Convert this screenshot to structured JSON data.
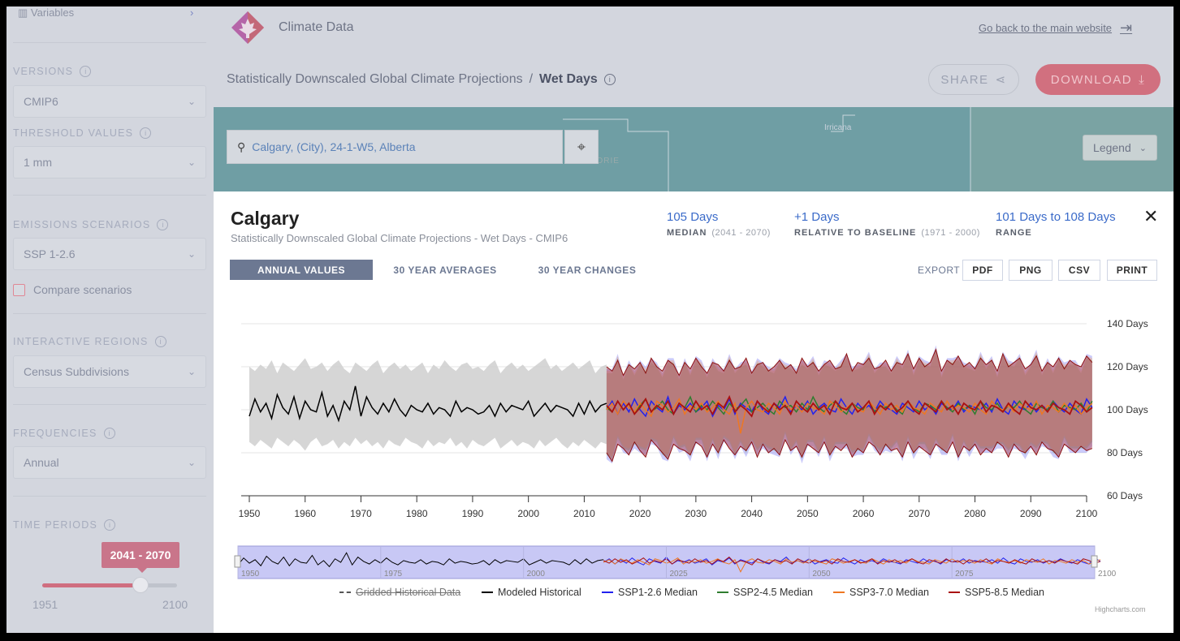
{
  "sidebar": {
    "variables_label": "Variables",
    "versions_label": "VERSIONS",
    "versions_value": "CMIP6",
    "threshold_label": "THRESHOLD VALUES",
    "threshold_value": "1 mm",
    "emissions_label": "EMISSIONS SCENARIOS",
    "emissions_value": "SSP 1-2.6",
    "compare_label": "Compare scenarios",
    "regions_label": "INTERACTIVE REGIONS",
    "regions_value": "Census Subdivisions",
    "frequencies_label": "FREQUENCIES",
    "frequencies_value": "Annual",
    "time_periods_label": "TIME PERIODS",
    "time_period_value": "2041 - 2070",
    "time_min": "1951",
    "time_max": "2100",
    "slider_fraction": 0.73
  },
  "header": {
    "site_title": "Climate Data",
    "back_link": "Go back to the main website",
    "breadcrumb_parent": "Statistically Downscaled Global Climate Projections",
    "breadcrumb_sep": "/",
    "breadcrumb_current": "Wet Days",
    "share_label": "SHARE",
    "download_label": "DOWNLOAD"
  },
  "map": {
    "search_value": "Calgary, (City), 24-1-W5, Alberta",
    "legend_label": "Legend",
    "town_label": "Irricana",
    "town_label2": "DRIE"
  },
  "panel": {
    "city": "Calgary",
    "subtitle": "Statistically Downscaled Global Climate Projections - Wet Days - CMIP6",
    "median_value": "105 Days",
    "median_label": "MEDIAN",
    "median_period": "(2041 - 2070)",
    "baseline_value": "+1 Days",
    "baseline_label": "RELATIVE TO BASELINE",
    "baseline_period": "(1971 - 2000)",
    "range_value": "101 Days to 108 Days",
    "range_label": "RANGE",
    "tabs": [
      "ANNUAL VALUES",
      "30 YEAR AVERAGES",
      "30 YEAR CHANGES"
    ],
    "export_label": "EXPORT",
    "export_buttons": [
      "PDF",
      "PNG",
      "CSV",
      "PRINT"
    ],
    "credit": "Highcharts.com"
  },
  "chart_data": {
    "type": "line",
    "x_range": [
      1950,
      2100
    ],
    "y_range": [
      60,
      140
    ],
    "y_ticks": [
      "60 Days",
      "80 Days",
      "100 Days",
      "120 Days",
      "140 Days"
    ],
    "x_ticks": [
      "1950",
      "1960",
      "1970",
      "1980",
      "1990",
      "2000",
      "2010",
      "2020",
      "2030",
      "2040",
      "2050",
      "2060",
      "2070",
      "2080",
      "2090",
      "2100"
    ],
    "navigator_ticks": [
      "1950",
      "1975",
      "2000",
      "2025",
      "2050",
      "2075",
      "2100"
    ],
    "historical_end": 2014,
    "legend": [
      {
        "name": "Gridded Historical Data",
        "color": "#555555",
        "hidden": true
      },
      {
        "name": "Modeled Historical",
        "color": "#000000"
      },
      {
        "name": "SSP1-2.6 Median",
        "color": "#2222ee"
      },
      {
        "name": "SSP2-4.5 Median",
        "color": "#2f7d2f"
      },
      {
        "name": "SSP3-7.0 Median",
        "color": "#ee7722"
      },
      {
        "name": "SSP5-8.5 Median",
        "color": "#aa1111"
      }
    ],
    "modeled_historical": [
      97,
      105,
      99,
      103,
      96,
      107,
      101,
      98,
      106,
      96,
      104,
      100,
      99,
      108,
      97,
      102,
      95,
      104,
      100,
      111,
      97,
      106,
      101,
      98,
      103,
      99,
      105,
      100,
      97,
      102,
      100,
      99,
      103,
      98,
      101,
      100,
      97,
      104,
      99,
      101,
      100,
      98,
      99,
      102,
      97,
      103,
      99,
      102,
      101,
      100,
      104,
      97,
      100,
      103,
      99,
      102,
      101,
      100,
      97,
      103,
      98,
      104,
      99,
      102,
      103
    ],
    "historical_band_upper": [
      120,
      118,
      121,
      119,
      123,
      117,
      122,
      120,
      118,
      121,
      124,
      119,
      120,
      122,
      118,
      121,
      123,
      119,
      117,
      122,
      120,
      118,
      121,
      123,
      117,
      120,
      122,
      119,
      121,
      118,
      120,
      122,
      117,
      121,
      119,
      123,
      120,
      118,
      121,
      122,
      119,
      120,
      118,
      121,
      123,
      117,
      120,
      122,
      119,
      121,
      118,
      120,
      122,
      124,
      119,
      121,
      118,
      120,
      122,
      119,
      121,
      123,
      117,
      120,
      121
    ],
    "historical_band_lower": [
      85,
      83,
      86,
      84,
      82,
      87,
      85,
      83,
      86,
      84,
      81,
      85,
      87,
      83,
      84,
      86,
      82,
      85,
      83,
      87,
      84,
      86,
      83,
      85,
      82,
      86,
      84,
      83,
      87,
      85,
      84,
      82,
      86,
      83,
      85,
      84,
      87,
      83,
      85,
      82,
      86,
      84,
      83,
      85,
      87,
      82,
      84,
      86,
      83,
      85,
      84,
      82,
      86,
      83,
      85,
      87,
      84,
      82,
      85,
      83,
      86,
      84,
      82,
      85,
      84
    ],
    "ssp126_median": [
      100,
      104,
      98,
      103,
      99,
      105,
      100,
      97,
      104,
      101,
      99,
      106,
      98,
      102,
      100,
      103,
      99,
      101,
      104,
      97,
      102,
      100,
      105,
      98,
      103,
      101,
      99,
      104,
      100,
      98,
      103,
      101,
      106,
      99,
      102,
      100,
      104,
      98,
      101,
      103,
      100,
      99,
      105,
      101,
      98,
      103,
      100,
      102,
      99,
      104,
      101,
      100,
      98,
      103,
      101,
      99,
      104,
      100,
      102,
      98,
      103,
      101,
      100,
      104,
      99,
      102,
      101,
      100,
      103,
      99,
      105,
      100,
      98,
      104,
      101,
      100,
      103,
      99,
      102,
      100,
      104,
      101,
      99,
      103,
      100,
      98,
      105,
      101
    ],
    "ssp245_median": [
      101,
      99,
      104,
      100,
      103,
      98,
      102,
      105,
      99,
      101,
      104,
      100,
      98,
      103,
      101,
      106,
      99,
      102,
      100,
      104,
      101,
      98,
      103,
      100,
      102,
      105,
      99,
      101,
      103,
      100,
      98,
      104,
      101,
      102,
      99,
      103,
      100,
      106,
      101,
      99,
      102,
      104,
      100,
      98,
      103,
      101,
      100,
      104,
      99,
      102,
      101,
      103,
      100,
      98,
      104,
      101,
      99,
      103,
      102,
      100,
      104,
      101,
      99,
      103,
      100,
      102,
      98,
      104,
      101,
      100,
      103,
      99,
      102,
      101,
      104,
      100,
      98,
      103,
      101,
      100,
      104,
      99,
      102,
      101,
      100,
      103,
      99,
      104
    ],
    "ssp370_median": [
      100,
      103,
      98,
      104,
      101,
      99,
      103,
      100,
      97,
      104,
      102,
      99,
      101,
      105,
      98,
      102,
      100,
      103,
      99,
      101,
      104,
      100,
      98,
      103,
      89,
      101,
      104,
      100,
      99,
      103,
      101,
      98,
      104,
      100,
      102,
      99,
      103,
      101,
      100,
      98,
      104,
      102,
      99,
      101,
      103,
      100,
      99,
      104,
      101,
      98,
      103,
      100,
      102,
      99,
      104,
      101,
      100,
      98,
      103,
      101,
      99,
      104,
      100,
      102,
      101,
      99,
      103,
      100,
      98,
      104,
      101,
      100,
      102,
      99,
      103,
      101,
      100,
      104,
      98,
      102,
      101,
      99,
      103,
      100,
      102,
      98,
      101,
      103
    ],
    "ssp585_median": [
      102,
      99,
      104,
      100,
      103,
      98,
      101,
      105,
      99,
      102,
      100,
      104,
      98,
      103,
      101,
      99,
      104,
      100,
      102,
      98,
      103,
      101,
      106,
      99,
      102,
      100,
      97,
      104,
      101,
      99,
      103,
      100,
      102,
      98,
      104,
      101,
      99,
      103,
      100,
      102,
      98,
      104,
      101,
      100,
      103,
      99,
      101,
      104,
      98,
      102,
      100,
      103,
      99,
      101,
      104,
      100,
      98,
      103,
      101,
      99,
      104,
      100,
      102,
      98,
      103,
      101,
      100,
      104,
      99,
      102,
      101,
      99,
      103,
      100,
      98,
      104,
      101,
      100,
      102,
      99,
      103,
      101,
      100,
      98,
      104,
      102,
      99,
      101
    ],
    "ssp585_upper": [
      120,
      118,
      123,
      116,
      121,
      119,
      122,
      117,
      124,
      120,
      118,
      123,
      121,
      116,
      122,
      119,
      124,
      120,
      117,
      122,
      121,
      118,
      123,
      119,
      120,
      124,
      117,
      121,
      122,
      118,
      120,
      123,
      119,
      121,
      117,
      124,
      120,
      122,
      118,
      121,
      123,
      119,
      120,
      126,
      118,
      122,
      121,
      124,
      119,
      120,
      123,
      118,
      122,
      121,
      126,
      119,
      124,
      120,
      122,
      128,
      118,
      123,
      121,
      125,
      120,
      122,
      119,
      124,
      121,
      123,
      118,
      126,
      120,
      122,
      124,
      119,
      121,
      125,
      118,
      122,
      120,
      124,
      119,
      123,
      121,
      120,
      125,
      122
    ],
    "ssp585_lower": [
      80,
      76,
      84,
      82,
      79,
      85,
      81,
      78,
      86,
      83,
      80,
      77,
      84,
      82,
      81,
      79,
      85,
      83,
      78,
      84,
      80,
      86,
      82,
      79,
      83,
      81,
      85,
      78,
      84,
      80,
      82,
      79,
      86,
      81,
      83,
      78,
      84,
      82,
      80,
      85,
      79,
      83,
      81,
      84,
      78,
      82,
      80,
      85,
      83,
      79,
      84,
      81,
      82,
      78,
      85,
      80,
      83,
      81,
      79,
      84,
      82,
      80,
      85,
      78,
      83,
      81,
      84,
      79,
      82,
      80,
      85,
      83,
      78,
      84,
      81,
      80,
      83,
      79,
      85,
      82,
      81,
      78,
      84,
      82,
      80,
      83,
      81,
      82
    ]
  }
}
